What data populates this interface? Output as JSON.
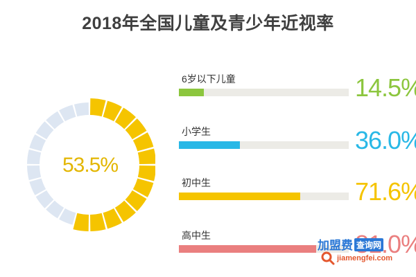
{
  "chart_data": {
    "type": "bar",
    "title": "2018年全国儿童及青少年近视率",
    "donut": {
      "value": 53.5,
      "label": "53.5%",
      "color": "#f5c400",
      "track_color": "#dde6f2"
    },
    "categories": [
      "6岁以下儿童",
      "小学生",
      "初中生",
      "高中生"
    ],
    "values": [
      14.5,
      36.0,
      71.6,
      81.0
    ],
    "value_labels": [
      "14.5%",
      "36.0%",
      "71.6%",
      "81.0%"
    ],
    "colors": [
      "#8cc63e",
      "#29b8e6",
      "#f5c400",
      "#ea7f7f"
    ],
    "xlim": [
      0,
      100
    ]
  },
  "watermark": {
    "brand": "加盟费",
    "tag": "查询网",
    "url": "jiamengfei.com"
  }
}
